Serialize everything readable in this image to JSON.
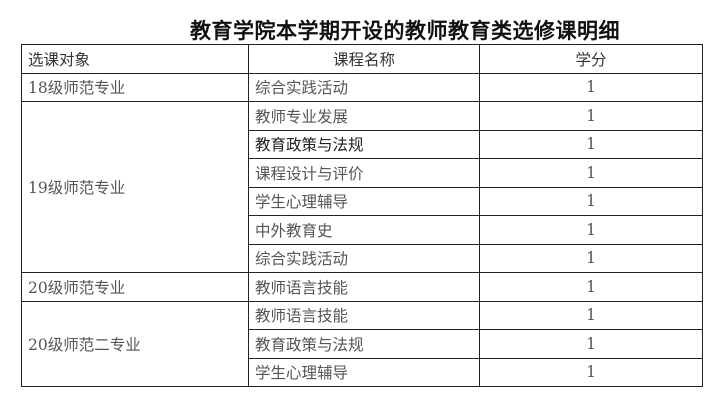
{
  "title": "教育学院本学期开设的教师教育类选修课明细",
  "headers": [
    "选课对象",
    "课程名称",
    "学分"
  ],
  "groups": [
    {
      "target": "18级师范专业",
      "courses": [
        {
          "name": "综合实践活动",
          "credit": "1"
        }
      ]
    },
    {
      "target": "19级师范专业",
      "courses": [
        {
          "name": "教师专业发展",
          "credit": "1"
        },
        {
          "name": "教育政策与法规",
          "credit": "1"
        },
        {
          "name": "课程设计与评价",
          "credit": "1"
        },
        {
          "name": "学生心理辅导",
          "credit": "1"
        },
        {
          "name": "中外教育史",
          "credit": "1"
        },
        {
          "name": "综合实践活动",
          "credit": "1"
        }
      ]
    },
    {
      "target": "20级师范专业",
      "courses": [
        {
          "name": "教师语言技能",
          "credit": "1"
        }
      ]
    },
    {
      "target": "20级师范二专业",
      "courses": [
        {
          "name": "教师语言技能",
          "credit": "1"
        },
        {
          "name": "教育政策与法规",
          "credit": "1"
        },
        {
          "name": "学生心理辅导",
          "credit": "1"
        }
      ]
    }
  ]
}
